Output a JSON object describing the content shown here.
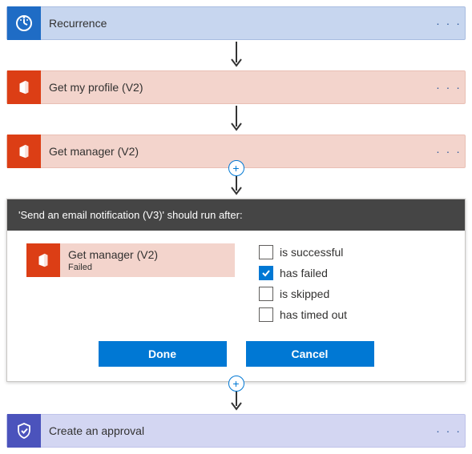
{
  "colors": {
    "recurrence_bg": "#c7d6ef",
    "recurrence_icon_bg": "#1f6cc5",
    "office_bg": "#f3d4cc",
    "office_icon_bg": "#dc3e15",
    "approval_bg": "#d3d6f2",
    "approval_icon_bg": "#4b53bc",
    "panel_header_bg": "#454545",
    "dots_color": "#3b5fa0",
    "arrow_color": "#333333",
    "plus_color": "#0078d4",
    "button_bg": "#0078d4",
    "checkbox_checked_bg": "#0078d4",
    "border_gray": "#c8c6c4"
  },
  "steps": {
    "recurrence": {
      "title": "Recurrence"
    },
    "get_profile": {
      "title": "Get my profile (V2)"
    },
    "get_manager": {
      "title": "Get manager (V2)"
    },
    "approval": {
      "title": "Create an approval"
    }
  },
  "dots": "· · ·",
  "panel": {
    "header": "'Send an email notification (V3)' should run after:",
    "prev_step_title": "Get manager (V2)",
    "prev_step_status": "Failed",
    "options": {
      "successful": {
        "label": "is successful",
        "checked": false
      },
      "failed": {
        "label": "has failed",
        "checked": true
      },
      "skipped": {
        "label": "is skipped",
        "checked": false
      },
      "timedout": {
        "label": "has timed out",
        "checked": false
      }
    },
    "buttons": {
      "done": "Done",
      "cancel": "Cancel"
    }
  }
}
